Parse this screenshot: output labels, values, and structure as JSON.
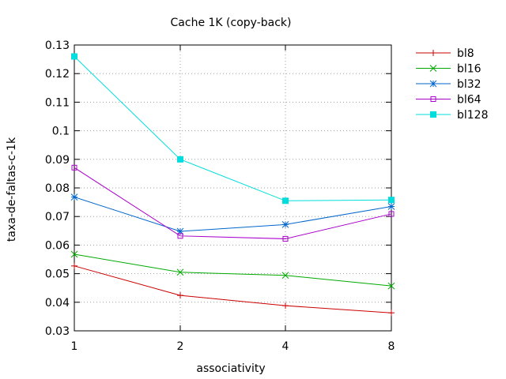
{
  "chart_data": {
    "type": "line",
    "title": "Cache 1K (copy-back)",
    "xlabel": "associativity",
    "ylabel": "taxa-de-faltas-c-1k",
    "x": [
      1,
      2,
      4,
      8
    ],
    "x_tick_labels": [
      "1",
      "2",
      "4",
      "8"
    ],
    "x_scale": "log2",
    "ylim": [
      0.03,
      0.13
    ],
    "y_ticks": [
      0.03,
      0.04,
      0.05,
      0.06,
      0.07,
      0.08,
      0.09,
      0.1,
      0.11,
      0.12,
      0.13
    ],
    "y_tick_labels": [
      "0.03",
      "0.04",
      "0.05",
      "0.06",
      "0.07",
      "0.08",
      "0.09",
      "0.1",
      "0.11",
      "0.12",
      "0.13"
    ],
    "grid": true,
    "legend_position": "outside-right",
    "series": [
      {
        "name": "bl8",
        "color": "#cc0000",
        "marker": "plus",
        "values": [
          0.0527,
          0.0424,
          0.0388,
          0.0363
        ]
      },
      {
        "name": "bl16",
        "color": "#00aa00",
        "marker": "cross",
        "values": [
          0.0568,
          0.0505,
          0.0494,
          0.0457
        ]
      },
      {
        "name": "bl32",
        "color": "#0066cc",
        "marker": "star",
        "values": [
          0.0768,
          0.0648,
          0.0672,
          0.0735
        ]
      },
      {
        "name": "bl64",
        "color": "#aa00cc",
        "marker": "open-square",
        "values": [
          0.0871,
          0.0632,
          0.0622,
          0.0709
        ]
      },
      {
        "name": "bl128",
        "color": "#00dddd",
        "marker": "filled-square",
        "values": [
          0.126,
          0.09,
          0.0755,
          0.0758
        ]
      }
    ]
  }
}
